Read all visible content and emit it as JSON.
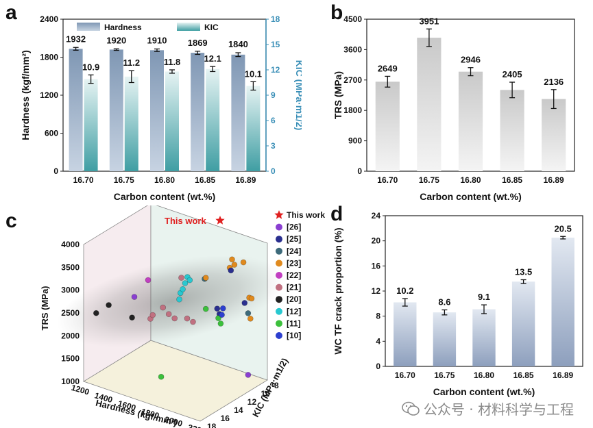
{
  "panels": {
    "a": "a",
    "b": "b",
    "c": "c",
    "d": "d"
  },
  "watermark": "公众号 · 材料科学与工程",
  "chart_data": [
    {
      "id": "a",
      "type": "bar",
      "categories": [
        "16.70",
        "16.75",
        "16.80",
        "16.85",
        "16.89"
      ],
      "xlabel": "Carbon content (wt.%)",
      "ylabel_left": "Hardness (kgf/mm²)",
      "ylabel_right": "KIC (MPa·m1/2)",
      "ylim_left": [
        0,
        2400
      ],
      "yticks_left": [
        0,
        600,
        1200,
        1800,
        2400
      ],
      "ylim_right": [
        0,
        18
      ],
      "yticks_right": [
        0,
        3,
        6,
        9,
        12,
        15,
        18
      ],
      "right_axis_color": "#3a8fb7",
      "series": [
        {
          "name": "Hardness",
          "axis": "left",
          "values": [
            1932,
            1920,
            1910,
            1869,
            1840
          ],
          "errors": [
            22,
            12,
            20,
            25,
            30
          ],
          "labels": [
            "1932",
            "1920",
            "1910",
            "1869",
            "1840"
          ]
        },
        {
          "name": "KIC",
          "axis": "right",
          "values": [
            10.9,
            11.2,
            11.8,
            12.1,
            10.1
          ],
          "errors": [
            0.5,
            0.7,
            0.2,
            0.3,
            0.5
          ],
          "labels": [
            "10.9",
            "11.2",
            "11.8",
            "12.1",
            "10.1"
          ]
        }
      ],
      "legend": [
        "Hardness",
        "KIC"
      ]
    },
    {
      "id": "b",
      "type": "bar",
      "categories": [
        "16.70",
        "16.75",
        "16.80",
        "16.85",
        "16.89"
      ],
      "xlabel": "Carbon content (wt.%)",
      "ylabel": "TRS (MPa)",
      "ylim": [
        0,
        4500
      ],
      "yticks": [
        0,
        900,
        1800,
        2700,
        3600,
        4500
      ],
      "values": [
        2649,
        3951,
        2946,
        2405,
        2136
      ],
      "errors": [
        160,
        260,
        120,
        230,
        280
      ],
      "labels": [
        "2649",
        "3951",
        "2946",
        "2405",
        "2136"
      ]
    },
    {
      "id": "c",
      "type": "scatter",
      "xlabel": "Hardness (kgf/mm²)",
      "ylabel": "TRS (MPa)",
      "zlabel": "KIC (MPa·m1/2)",
      "xticks": [
        "1200",
        "1400",
        "1600",
        "1800",
        "2000",
        "2200"
      ],
      "yticks": [
        "1000",
        "1500",
        "2000",
        "2500",
        "3000",
        "3500",
        "4000"
      ],
      "zticks": [
        "8",
        "10",
        "12",
        "14",
        "16",
        "18"
      ],
      "annotation": "This work",
      "legend": [
        {
          "name": "This work",
          "color": "#e02020",
          "marker": "star"
        },
        {
          "name": "[26]",
          "color": "#8a3fd1"
        },
        {
          "name": "[25]",
          "color": "#2a2f8f"
        },
        {
          "name": "[24]",
          "color": "#3d6a7a"
        },
        {
          "name": "[23]",
          "color": "#e08a1e"
        },
        {
          "name": "[22]",
          "color": "#c13fc1"
        },
        {
          "name": "[21]",
          "color": "#c07080"
        },
        {
          "name": "[20]",
          "color": "#222222"
        },
        {
          "name": "[12]",
          "color": "#28c8d0"
        },
        {
          "name": "[11]",
          "color": "#3cc03c"
        },
        {
          "name": "[10]",
          "color": "#2d3fcf"
        }
      ],
      "points_screen_estimate_note": "",
      "points": [
        {
          "ref": "[20]",
          "hardness": 1250,
          "trs": 2450,
          "kic": 17
        },
        {
          "ref": "[20]",
          "hardness": 1300,
          "trs": 2580,
          "kic": 16
        },
        {
          "ref": "[20]",
          "hardness": 1500,
          "trs": 2480,
          "kic": 16
        },
        {
          "ref": "[26]",
          "hardness": 1520,
          "trs": 2950,
          "kic": 16
        },
        {
          "ref": "[26]",
          "hardness": 2150,
          "trs": 1250,
          "kic": 10
        },
        {
          "ref": "[22]",
          "hardness": 1580,
          "trs": 3280,
          "kic": 15
        },
        {
          "ref": "[21]",
          "hardness": 1600,
          "trs": 2450,
          "kic": 15
        },
        {
          "ref": "[21]",
          "hardness": 1620,
          "trs": 2550,
          "kic": 15
        },
        {
          "ref": "[21]",
          "hardness": 1650,
          "trs": 2650,
          "kic": 14
        },
        {
          "ref": "[21]",
          "hardness": 1700,
          "trs": 2550,
          "kic": 14
        },
        {
          "ref": "[21]",
          "hardness": 1750,
          "trs": 2500,
          "kic": 14
        },
        {
          "ref": "[21]",
          "hardness": 1800,
          "trs": 2450,
          "kic": 13
        },
        {
          "ref": "[21]",
          "hardness": 1850,
          "trs": 2420,
          "kic": 13
        },
        {
          "ref": "[21]",
          "hardness": 1750,
          "trs": 3300,
          "kic": 13
        },
        {
          "ref": "[12]",
          "hardness": 1800,
          "trs": 3100,
          "kic": 14
        },
        {
          "ref": "[12]",
          "hardness": 1820,
          "trs": 3200,
          "kic": 14
        },
        {
          "ref": "[12]",
          "hardness": 1840,
          "trs": 3350,
          "kic": 14
        },
        {
          "ref": "[12]",
          "hardness": 1860,
          "trs": 3500,
          "kic": 14
        },
        {
          "ref": "[12]",
          "hardness": 1880,
          "trs": 3450,
          "kic": 14
        },
        {
          "ref": "[12]",
          "hardness": 1790,
          "trs": 2950,
          "kic": 14
        },
        {
          "ref": "[24]",
          "hardness": 1950,
          "trs": 3450,
          "kic": 13
        },
        {
          "ref": "[23]",
          "hardness": 1960,
          "trs": 3480,
          "kic": 13
        },
        {
          "ref": "[23]",
          "hardness": 2050,
          "trs": 3600,
          "kic": 11
        },
        {
          "ref": "[23]",
          "hardness": 2070,
          "trs": 3800,
          "kic": 11
        },
        {
          "ref": "[23]",
          "hardness": 2090,
          "trs": 3700,
          "kic": 11
        },
        {
          "ref": "[23]",
          "hardness": 2110,
          "trs": 3680,
          "kic": 10
        },
        {
          "ref": "[25]",
          "hardness": 2060,
          "trs": 3550,
          "kic": 11
        },
        {
          "ref": "[25]",
          "hardness": 2000,
          "trs": 2750,
          "kic": 12
        },
        {
          "ref": "[25]",
          "hardness": 2020,
          "trs": 2650,
          "kic": 12
        },
        {
          "ref": "[25]",
          "hardness": 2120,
          "trs": 2800,
          "kic": 10
        },
        {
          "ref": "[24]",
          "hardness": 2150,
          "trs": 2600,
          "kic": 10
        },
        {
          "ref": "[23]",
          "hardness": 2160,
          "trs": 2950,
          "kic": 10
        },
        {
          "ref": "[23]",
          "hardness": 2180,
          "trs": 2950,
          "kic": 10
        },
        {
          "ref": "[23]",
          "hardness": 2170,
          "trs": 2500,
          "kic": 10
        },
        {
          "ref": "[11]",
          "hardness": 1960,
          "trs": 2800,
          "kic": 13
        },
        {
          "ref": "[11]",
          "hardness": 2010,
          "trs": 2550,
          "kic": 12
        },
        {
          "ref": "[11]",
          "hardness": 2030,
          "trs": 2450,
          "kic": 12
        },
        {
          "ref": "[11]",
          "hardness": 1750,
          "trs": 1400,
          "kic": 16
        },
        {
          "ref": "[10]",
          "hardness": 2040,
          "trs": 2650,
          "kic": 12
        },
        {
          "ref": "[10]",
          "hardness": 2050,
          "trs": 2800,
          "kic": 12
        }
      ]
    },
    {
      "id": "d",
      "type": "bar",
      "categories": [
        "16.70",
        "16.75",
        "16.80",
        "16.85",
        "16.89"
      ],
      "xlabel": "Carbon content (wt.%)",
      "ylabel": "WC TF crack proportion (%)",
      "ylim": [
        0,
        24
      ],
      "yticks": [
        0,
        4,
        8,
        12,
        16,
        20,
        24
      ],
      "values": [
        10.2,
        8.6,
        9.1,
        13.5,
        20.5
      ],
      "errors": [
        0.6,
        0.4,
        0.7,
        0.3,
        0.2
      ],
      "labels": [
        "10.2",
        "8.6",
        "9.1",
        "13.5",
        "20.5"
      ]
    }
  ]
}
